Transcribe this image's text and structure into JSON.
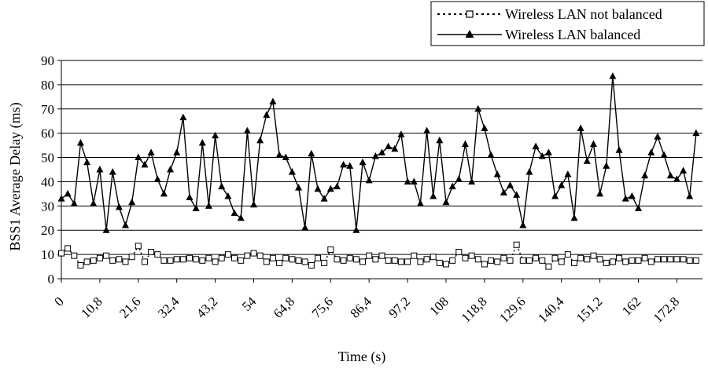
{
  "chart_data": {
    "type": "line",
    "title": "",
    "xlabel": "Time (s)",
    "ylabel": "BSS1 Average Delay (ms)",
    "ylim": [
      0,
      90
    ],
    "yticks": [
      0,
      10,
      20,
      30,
      40,
      50,
      60,
      70,
      80,
      90
    ],
    "xlim": [
      0,
      180
    ],
    "xtick_labels": [
      "0",
      "10,8",
      "21,6",
      "32,4",
      "43,2",
      "54",
      "64,8",
      "75,6",
      "86,4",
      "97,2",
      "108",
      "118,8",
      "129,6",
      "140,4",
      "151,2",
      "162",
      "172,8"
    ],
    "xtick_step": 10.8,
    "x_step": 1.8,
    "grid": "horizontal",
    "legend_position": "top-right",
    "series": [
      {
        "name": "Wireless LAN not balanced",
        "style": "dotted-line-square-markers",
        "color": "#000000",
        "values": [
          10.5,
          12.5,
          9.5,
          5.5,
          7,
          7.5,
          8.5,
          9.5,
          7.5,
          8,
          7,
          9,
          13.5,
          7,
          11,
          10,
          7.5,
          7.5,
          8,
          8,
          8.5,
          8,
          7.5,
          8.5,
          7,
          8.5,
          10,
          8.5,
          7.5,
          9.5,
          10.5,
          9.5,
          7,
          8.5,
          6.5,
          8.5,
          8,
          7.5,
          7,
          5.5,
          8.5,
          6.5,
          12,
          8,
          7.5,
          8.5,
          8,
          7,
          9.5,
          8,
          9.5,
          7.5,
          7.5,
          7,
          7,
          9.5,
          7,
          8,
          9,
          6.5,
          6,
          7.5,
          11,
          8.5,
          9.5,
          8,
          6,
          7.5,
          7,
          8.5,
          7.5,
          14,
          7.5,
          7.5,
          8.5,
          7.5,
          5,
          8.5,
          7,
          10,
          6.5,
          8.5,
          8,
          9.5,
          8,
          6.5,
          7,
          8.5,
          7,
          7.5,
          7.5,
          8.5,
          7,
          8,
          8,
          8,
          8,
          8,
          7.5,
          7.5
        ]
      },
      {
        "name": "Wireless LAN balanced",
        "style": "solid-line-triangle-markers",
        "color": "#000000",
        "values": [
          33,
          35,
          31,
          56,
          48,
          31,
          45,
          20,
          44,
          29.5,
          22,
          31.5,
          50,
          47,
          52,
          41,
          35,
          45,
          52,
          66.5,
          33.5,
          29,
          56,
          30,
          59,
          38,
          34,
          27,
          25,
          61,
          30.5,
          57,
          67.5,
          73,
          51,
          50,
          44,
          37.5,
          21,
          51.5,
          37,
          33,
          37,
          38,
          47,
          46.5,
          20,
          48,
          40.5,
          50.5,
          52,
          54.5,
          53.5,
          59.5,
          40,
          40,
          31,
          61,
          34,
          57,
          31.5,
          38,
          41,
          55.5,
          40,
          70,
          62,
          51,
          43,
          35.5,
          38.5,
          34.5,
          22,
          44,
          54.5,
          50.5,
          52,
          34,
          38.5,
          43,
          25,
          62,
          48.5,
          55.5,
          35,
          46.5,
          83.5,
          53,
          33,
          34,
          29,
          42.5,
          52,
          58.5,
          51,
          42.5,
          41,
          44.5,
          34,
          60
        ]
      }
    ]
  }
}
